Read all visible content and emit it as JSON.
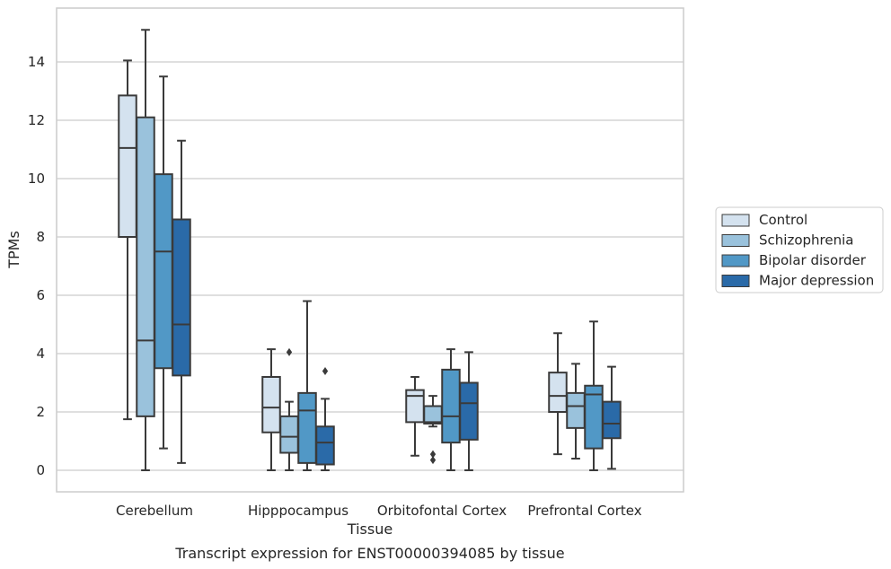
{
  "chart_data": {
    "type": "box",
    "xlabel": "Tissue",
    "ylabel": "TPMs",
    "caption": "Transcript expression for ENST00000394085 by tissue",
    "ylim": [
      -0.7,
      15.8
    ],
    "yticks": [
      0,
      2,
      4,
      6,
      8,
      10,
      12,
      14
    ],
    "grid": "horizontal",
    "legend_position": "right",
    "categories": [
      "Cerebellum",
      "Hipppocampus",
      "Orbitofontal Cortex",
      "Prefrontal Cortex"
    ],
    "series": [
      {
        "name": "Control",
        "color": "#d4e2ef",
        "boxes": [
          {
            "whislo": 1.75,
            "q1": 8.0,
            "med": 11.05,
            "q3": 12.85,
            "whishi": 14.05,
            "fliers": []
          },
          {
            "whislo": 0.0,
            "q1": 1.3,
            "med": 2.15,
            "q3": 3.2,
            "whishi": 4.15,
            "fliers": []
          },
          {
            "whislo": 0.5,
            "q1": 1.65,
            "med": 2.55,
            "q3": 2.75,
            "whishi": 3.2,
            "fliers": []
          },
          {
            "whislo": 0.55,
            "q1": 2.0,
            "med": 2.55,
            "q3": 3.35,
            "whishi": 4.7,
            "fliers": []
          }
        ]
      },
      {
        "name": "Schizophrenia",
        "color": "#9ac2dc",
        "boxes": [
          {
            "whislo": 0.0,
            "q1": 1.85,
            "med": 4.45,
            "q3": 12.1,
            "whishi": 15.1,
            "fliers": []
          },
          {
            "whislo": 0.0,
            "q1": 0.6,
            "med": 1.15,
            "q3": 1.85,
            "whishi": 2.35,
            "fliers": [
              4.05
            ]
          },
          {
            "whislo": 1.5,
            "q1": 1.6,
            "med": 1.65,
            "q3": 2.2,
            "whishi": 2.55,
            "fliers": [
              0.55,
              0.35
            ]
          },
          {
            "whislo": 0.4,
            "q1": 1.45,
            "med": 2.2,
            "q3": 2.65,
            "whishi": 3.65,
            "fliers": []
          }
        ]
      },
      {
        "name": "Bipolar disorder",
        "color": "#5198c6",
        "boxes": [
          {
            "whislo": 0.75,
            "q1": 3.5,
            "med": 7.5,
            "q3": 10.15,
            "whishi": 13.5,
            "fliers": []
          },
          {
            "whislo": 0.0,
            "q1": 0.25,
            "med": 2.05,
            "q3": 2.65,
            "whishi": 5.8,
            "fliers": []
          },
          {
            "whislo": 0.0,
            "q1": 0.95,
            "med": 1.85,
            "q3": 3.45,
            "whishi": 4.15,
            "fliers": []
          },
          {
            "whislo": 0.0,
            "q1": 0.75,
            "med": 2.6,
            "q3": 2.9,
            "whishi": 5.1,
            "fliers": []
          }
        ]
      },
      {
        "name": "Major depression",
        "color": "#2a6aa8",
        "boxes": [
          {
            "whislo": 0.25,
            "q1": 3.25,
            "med": 5.0,
            "q3": 8.6,
            "whishi": 11.3,
            "fliers": []
          },
          {
            "whislo": 0.0,
            "q1": 0.2,
            "med": 0.95,
            "q3": 1.5,
            "whishi": 2.45,
            "fliers": [
              3.4
            ]
          },
          {
            "whislo": 0.0,
            "q1": 1.05,
            "med": 2.3,
            "q3": 3.0,
            "whishi": 4.05,
            "fliers": []
          },
          {
            "whislo": 0.05,
            "q1": 1.1,
            "med": 1.6,
            "q3": 2.35,
            "whishi": 3.55,
            "fliers": []
          }
        ]
      }
    ]
  }
}
